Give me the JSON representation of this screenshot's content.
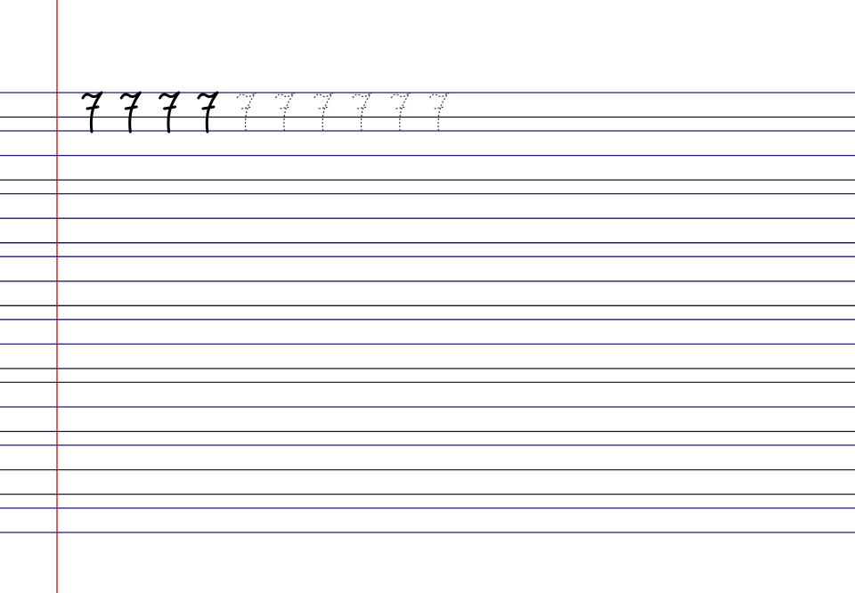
{
  "sheet": {
    "character": "7",
    "solid_count": 4,
    "traced_count": 6,
    "colors": {
      "rule": "#1c1c6e",
      "margin": "#b0141a",
      "ink": "#000000"
    }
  }
}
